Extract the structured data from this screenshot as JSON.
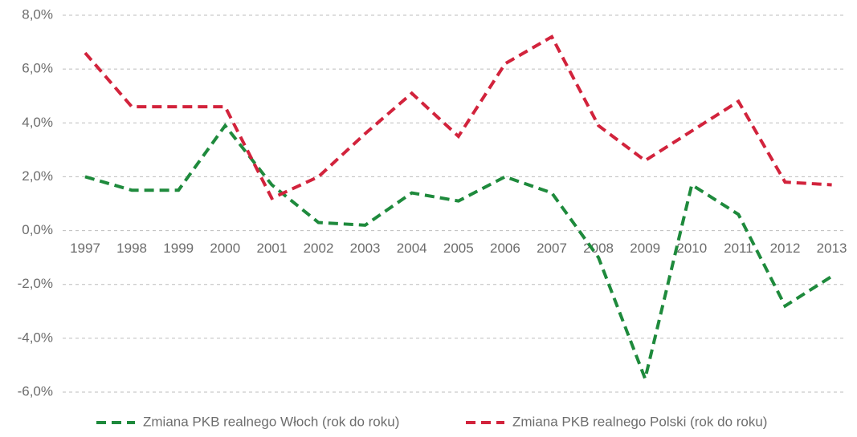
{
  "chart_data": {
    "type": "line",
    "categories": [
      "1997",
      "1998",
      "1999",
      "2000",
      "2001",
      "2002",
      "2003",
      "2004",
      "2005",
      "2006",
      "2007",
      "2008",
      "2009",
      "2010",
      "2011",
      "2012",
      "2013"
    ],
    "series": [
      {
        "name": "Zmiana PKB realnego Włoch (rok do roku)",
        "color": "#1e8a3c",
        "values": [
          2.0,
          1.5,
          1.5,
          3.9,
          1.7,
          0.3,
          0.2,
          1.4,
          1.1,
          2.0,
          1.4,
          -1.0,
          -5.5,
          1.7,
          0.6,
          -2.8,
          -1.7
        ]
      },
      {
        "name": "Zmiana PKB realnego Polski (rok do roku)",
        "color": "#d2233c",
        "values": [
          6.6,
          4.6,
          4.6,
          4.6,
          1.2,
          2.0,
          3.6,
          5.1,
          3.5,
          6.2,
          7.2,
          3.9,
          2.6,
          3.7,
          4.8,
          1.8,
          1.7
        ]
      }
    ],
    "ylim": [
      -6,
      8
    ],
    "yticks": [
      {
        "value": -6,
        "label": "-6,0%"
      },
      {
        "value": -4,
        "label": "-4,0%"
      },
      {
        "value": -2,
        "label": "-2,0%"
      },
      {
        "value": 0,
        "label": "0,0%"
      },
      {
        "value": 2,
        "label": "2,0%"
      },
      {
        "value": 4,
        "label": "4,0%"
      },
      {
        "value": 6,
        "label": "6,0%"
      },
      {
        "value": 8,
        "label": "8,0%"
      }
    ],
    "grid": true,
    "legend": "bottom"
  }
}
